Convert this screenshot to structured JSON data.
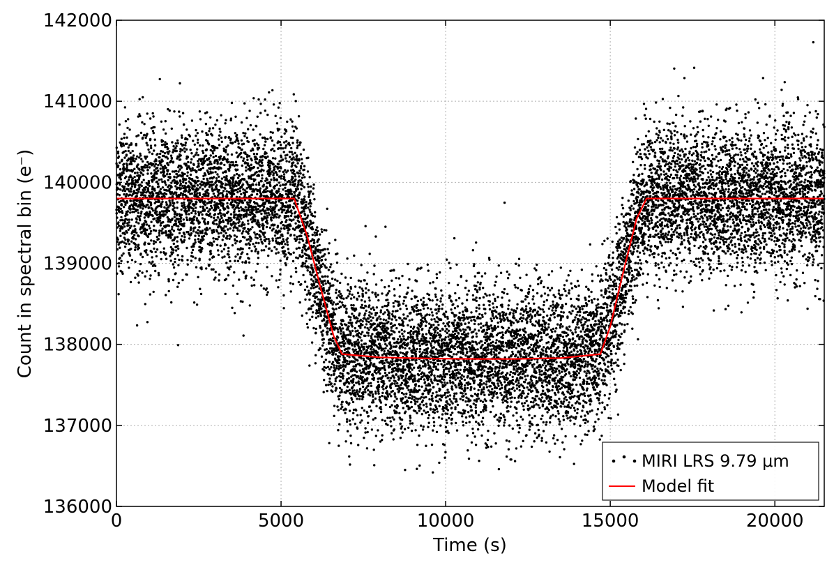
{
  "chart_data": {
    "type": "scatter",
    "xlabel": "Time (s)",
    "ylabel": "Count in spectral bin (e⁻)",
    "xlim": [
      0,
      21500
    ],
    "ylim": [
      136000,
      142000
    ],
    "xticks": [
      0,
      5000,
      10000,
      15000,
      20000
    ],
    "xtick_labels": [
      "0",
      "5000",
      "10000",
      "15000",
      "20000"
    ],
    "yticks": [
      136000,
      137000,
      138000,
      139000,
      140000,
      141000,
      142000
    ],
    "ytick_labels": [
      "136000",
      "137000",
      "138000",
      "139000",
      "140000",
      "141000",
      "142000"
    ],
    "grid": true,
    "legend_position": "bottom-right",
    "series": [
      {
        "name": "MIRI LRS 9.79 μm",
        "kind": "scatter",
        "color": "#000000",
        "model": {
          "baseline": 139800,
          "ingress_start": 5400,
          "ingress_end": 6850,
          "egress_start": 14700,
          "egress_end": 16100,
          "in_transit_edge": 137880,
          "in_transit_center": 137820,
          "scatter_sigma": 450,
          "n_points": 12000
        }
      },
      {
        "name": "Model fit",
        "kind": "line",
        "color": "#ff0000",
        "x": [
          0,
          5400,
          5800,
          6200,
          6600,
          6850,
          8000,
          9500,
          11000,
          12000,
          13500,
          14700,
          15000,
          15400,
          15800,
          16100,
          21500
        ],
        "y": [
          139800,
          139800,
          139330,
          138700,
          138100,
          137880,
          137840,
          137825,
          137820,
          137820,
          137830,
          137880,
          138220,
          138900,
          139550,
          139800,
          139800
        ]
      }
    ]
  }
}
